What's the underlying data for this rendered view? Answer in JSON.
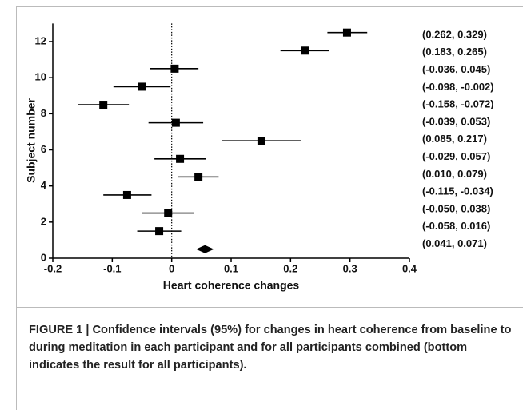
{
  "chart_data": {
    "type": "forest",
    "xlabel": "Heart coherence changes",
    "ylabel": "Subject number",
    "xlim": [
      -0.2,
      0.4
    ],
    "xticks": [
      -0.2,
      -0.1,
      0,
      0.1,
      0.2,
      0.3,
      0.4
    ],
    "ylim": [
      0,
      13
    ],
    "yticks": [
      0,
      2,
      4,
      6,
      8,
      10,
      12
    ],
    "y": [
      12.5,
      11.5,
      10.5,
      9.5,
      8.5,
      7.5,
      6.5,
      5.5,
      4.5,
      3.5,
      2.5,
      1.5,
      0.5
    ],
    "estimates": [
      0.295,
      0.224,
      0.005,
      -0.05,
      -0.115,
      0.007,
      0.151,
      0.014,
      0.045,
      -0.075,
      -0.006,
      -0.021,
      0.056
    ],
    "lower": [
      0.262,
      0.183,
      -0.036,
      -0.098,
      -0.158,
      -0.039,
      0.085,
      -0.029,
      0.01,
      -0.115,
      -0.05,
      -0.058,
      0.041
    ],
    "upper": [
      0.329,
      0.265,
      0.045,
      -0.002,
      -0.072,
      0.053,
      0.217,
      0.057,
      0.079,
      -0.034,
      0.038,
      0.016,
      0.071
    ],
    "ci_labels": [
      "(0.262, 0.329)",
      "(0.183, 0.265)",
      "(-0.036, 0.045)",
      "(-0.098, -0.002)",
      "(-0.158, -0.072)",
      "(-0.039, 0.053)",
      "(0.085, 0.217)",
      "(-0.029, 0.057)",
      "(0.010, 0.079)",
      "(-0.115, -0.034)",
      "(-0.050, 0.038)",
      "(-0.058, 0.016)",
      "(0.041, 0.071)"
    ],
    "color": "#000000"
  },
  "caption": "FIGURE 1 | Confidence intervals (95%) for changes in heart coherence from baseline to during meditation in each participant and for all participants combined (bottom indicates the result for all participants)."
}
